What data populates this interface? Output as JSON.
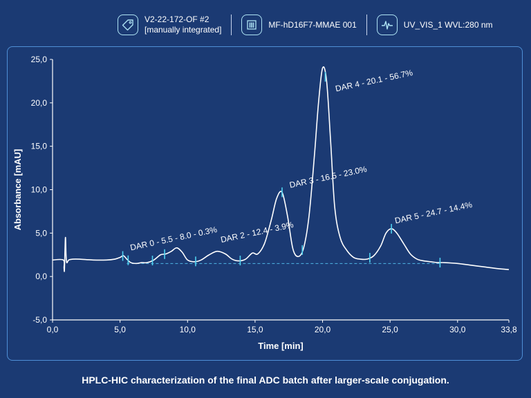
{
  "header": {
    "items": [
      {
        "icon": "tag-icon",
        "lines": [
          "V2-22-172-OF #2",
          "[manually integrated]"
        ]
      },
      {
        "icon": "vial-rack-icon",
        "lines": [
          "MF-hD16F7-MMAE 001"
        ]
      },
      {
        "icon": "waveform-icon",
        "lines": [
          "UV_VIS_1  WVL:280 nm"
        ]
      }
    ]
  },
  "caption": "HPLC-HIC  characterization of the final ADC batch after larger-scale conjugation.",
  "colors": {
    "background": "#1b3a73",
    "trace": "#ffffff",
    "marker": "#4fd1f0",
    "baseline": "#4fb8e6",
    "panel_border": "#4f8fd6"
  },
  "chart_data": {
    "type": "line",
    "xlabel": "Time [min]",
    "ylabel": "Absorbance [mAU]",
    "xlim": [
      0,
      33.8
    ],
    "ylim": [
      -5,
      25
    ],
    "xticks": [
      0,
      5,
      10,
      15,
      20,
      25,
      30,
      33.8
    ],
    "xtick_labels": [
      "0,0",
      "5,0",
      "10,0",
      "15,0",
      "20,0",
      "25,0",
      "30,0",
      "33,8"
    ],
    "yticks": [
      -5,
      0,
      5,
      10,
      15,
      20,
      25
    ],
    "ytick_labels": [
      "-5,0",
      "0,0",
      "5,0",
      "10,0",
      "15,0",
      "20,0",
      "25,0"
    ],
    "grid": false,
    "series": [
      {
        "x": [
          0,
          0.8,
          0.85,
          0.88,
          0.92,
          0.96,
          1.0,
          1.05,
          1.2,
          1.5,
          2.0,
          3.0,
          4.0,
          4.6,
          5.0,
          5.25,
          5.5,
          5.8,
          6.2,
          6.6,
          7.0,
          7.5,
          8.0,
          8.4,
          8.8,
          9.2,
          9.6,
          10.0,
          10.5,
          11.0,
          11.6,
          12.2,
          12.8,
          13.3,
          13.8,
          14.3,
          14.8,
          15.2,
          15.7,
          16.2,
          16.6,
          17.0,
          17.4,
          17.8,
          18.2,
          18.6,
          19.0,
          19.4,
          19.7,
          20.0,
          20.3,
          20.6,
          20.9,
          21.3,
          21.8,
          22.3,
          22.8,
          23.3,
          23.8,
          24.3,
          24.7,
          25.1,
          25.5,
          26.0,
          26.5,
          27.0,
          27.5,
          28.0,
          28.5,
          29.0,
          30.0,
          31.0,
          32.0,
          33.0,
          33.8
        ],
        "y": [
          1.9,
          1.9,
          1.0,
          0.7,
          3.0,
          4.5,
          2.5,
          1.6,
          1.9,
          2.0,
          2.0,
          1.9,
          1.9,
          2.0,
          2.2,
          2.4,
          2.0,
          1.6,
          1.5,
          1.6,
          1.6,
          1.9,
          2.5,
          2.6,
          2.9,
          3.3,
          2.8,
          1.9,
          1.7,
          1.9,
          2.5,
          2.9,
          2.6,
          2.0,
          1.8,
          2.0,
          2.7,
          2.6,
          3.8,
          6.5,
          9.0,
          9.7,
          7.0,
          3.2,
          2.3,
          3.3,
          7.0,
          14.0,
          20.0,
          24.0,
          22.5,
          15.5,
          8.0,
          4.5,
          3.0,
          2.2,
          2.0,
          2.0,
          2.4,
          3.5,
          5.0,
          5.5,
          5.0,
          3.8,
          2.6,
          2.0,
          1.8,
          1.7,
          1.6,
          1.6,
          1.5,
          1.3,
          1.1,
          0.9,
          0.8
        ]
      }
    ],
    "baseline": {
      "x": [
        5.5,
        28.7
      ],
      "y": 1.5
    },
    "markers": [
      5.2,
      5.6,
      7.4,
      8.3,
      10.6,
      13.9,
      18.5,
      20.2,
      17.0,
      23.5,
      25.1,
      28.7
    ],
    "annotations": [
      {
        "text": "DAR 0 - 5.5 - 8.0 - 0.3%",
        "x": 5.8,
        "y": 3.0
      },
      {
        "text": "DAR 2 - 12.4 - 3.9%",
        "x": 12.5,
        "y": 3.9
      },
      {
        "text": "DAR 3 - 16.5 - 23.0%",
        "x": 17.6,
        "y": 10.2
      },
      {
        "text": "DAR 4 - 20.1 - 56.7%",
        "x": 21.0,
        "y": 21.3
      },
      {
        "text": "DAR 5 - 24.7 - 14.4%",
        "x": 25.4,
        "y": 6.1
      }
    ]
  }
}
